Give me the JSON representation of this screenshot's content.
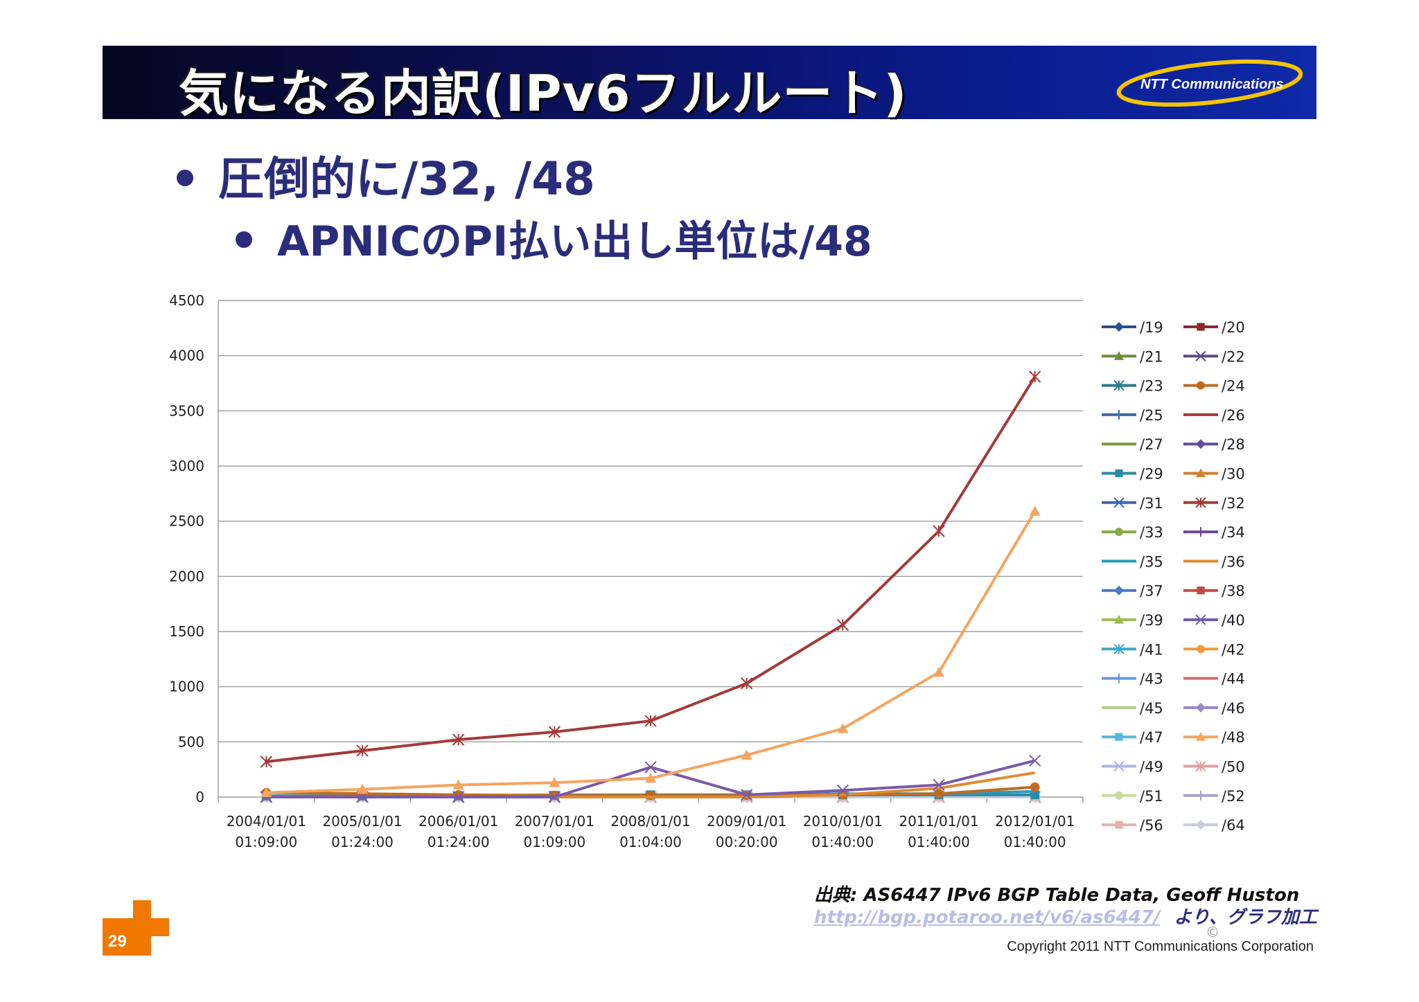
{
  "slide": {
    "title": "気になる内訳(IPv6フルルート)",
    "logo_text": "NTT Communications",
    "bullet1": "圧倒的に/32, /48",
    "bullet2": "APNICのPI払い出し単位は/48",
    "source_line1": "出典:  AS6447 IPv6 BGP Table Data, Geoff Huston",
    "source_link": "http://bgp.potaroo.net/v6/as6447/",
    "source_suffix": "より、グラフ加工",
    "copyright_symbol": "©",
    "copyright": "Copyright 2011 NTT Communications Corporation",
    "page_number": "29"
  },
  "chart_data": {
    "type": "line",
    "title": "",
    "xlabel": "",
    "ylabel": "",
    "ylim": [
      0,
      4500
    ],
    "yticks": [
      0,
      500,
      1000,
      1500,
      2000,
      2500,
      3000,
      3500,
      4000,
      4500
    ],
    "grid": true,
    "legend_position": "right",
    "categories": [
      [
        "2004/01/01",
        "01:09:00"
      ],
      [
        "2005/01/01",
        "01:24:00"
      ],
      [
        "2006/01/01",
        "01:24:00"
      ],
      [
        "2007/01/01",
        "01:09:00"
      ],
      [
        "2008/01/01",
        "01:04:00"
      ],
      [
        "2009/01/01",
        "00:20:00"
      ],
      [
        "2010/01/01",
        "01:40:00"
      ],
      [
        "2011/01/01",
        "01:40:00"
      ],
      [
        "2012/01/01",
        "01:40:00"
      ]
    ],
    "series": [
      {
        "name": "/19",
        "color": "#2e4e8c",
        "marker": "diamond",
        "values": [
          0,
          0,
          0,
          0,
          0,
          0,
          0,
          0,
          0
        ]
      },
      {
        "name": "/20",
        "color": "#8c2a28",
        "marker": "square",
        "values": [
          0,
          0,
          0,
          0,
          0,
          0,
          0,
          0,
          0
        ]
      },
      {
        "name": "/21",
        "color": "#6e8c3a",
        "marker": "triangle",
        "values": [
          0,
          0,
          0,
          0,
          0,
          0,
          0,
          0,
          0
        ]
      },
      {
        "name": "/22",
        "color": "#5e4a80",
        "marker": "x",
        "values": [
          0,
          0,
          0,
          0,
          0,
          0,
          0,
          0,
          0
        ]
      },
      {
        "name": "/23",
        "color": "#2a7a8c",
        "marker": "star",
        "values": [
          0,
          0,
          0,
          0,
          0,
          0,
          0,
          0,
          0
        ]
      },
      {
        "name": "/24",
        "color": "#c06a20",
        "marker": "circle",
        "values": [
          40,
          30,
          20,
          15,
          15,
          15,
          20,
          30,
          90
        ]
      },
      {
        "name": "/25",
        "color": "#3e6aa8",
        "marker": "plus",
        "values": [
          0,
          0,
          0,
          0,
          0,
          0,
          0,
          0,
          0
        ]
      },
      {
        "name": "/26",
        "color": "#a33a34",
        "marker": "none",
        "values": [
          0,
          0,
          0,
          0,
          0,
          0,
          0,
          0,
          0
        ]
      },
      {
        "name": "/27",
        "color": "#7a9a3a",
        "marker": "none",
        "values": [
          0,
          0,
          0,
          0,
          0,
          0,
          0,
          0,
          0
        ]
      },
      {
        "name": "/28",
        "color": "#6a4a96",
        "marker": "diamond",
        "values": [
          0,
          0,
          0,
          0,
          0,
          0,
          0,
          0,
          0
        ]
      },
      {
        "name": "/29",
        "color": "#2a8aa8",
        "marker": "square",
        "values": [
          10,
          10,
          10,
          15,
          20,
          20,
          20,
          20,
          20
        ]
      },
      {
        "name": "/30",
        "color": "#d08030",
        "marker": "triangle",
        "values": [
          0,
          0,
          0,
          0,
          0,
          0,
          0,
          0,
          0
        ]
      },
      {
        "name": "/31",
        "color": "#3a6aa8",
        "marker": "x",
        "values": [
          0,
          0,
          0,
          0,
          0,
          0,
          0,
          0,
          0
        ]
      },
      {
        "name": "/32",
        "color": "#a33a3a",
        "marker": "star",
        "values": [
          320,
          420,
          520,
          590,
          690,
          1030,
          1560,
          2410,
          3810
        ]
      },
      {
        "name": "/33",
        "color": "#8aa84a",
        "marker": "circle",
        "values": [
          0,
          0,
          0,
          0,
          0,
          0,
          0,
          0,
          0
        ]
      },
      {
        "name": "/34",
        "color": "#6a4a96",
        "marker": "plus",
        "values": [
          0,
          0,
          0,
          0,
          0,
          0,
          0,
          0,
          0
        ]
      },
      {
        "name": "/35",
        "color": "#2a9ab8",
        "marker": "none",
        "values": [
          10,
          10,
          10,
          20,
          20,
          20,
          30,
          30,
          50
        ]
      },
      {
        "name": "/36",
        "color": "#e08a30",
        "marker": "none",
        "values": [
          0,
          0,
          0,
          0,
          0,
          0,
          20,
          80,
          220
        ]
      },
      {
        "name": "/37",
        "color": "#4a7ac0",
        "marker": "diamond",
        "values": [
          0,
          0,
          0,
          0,
          0,
          0,
          0,
          0,
          0
        ]
      },
      {
        "name": "/38",
        "color": "#c04a48",
        "marker": "square",
        "values": [
          0,
          0,
          0,
          0,
          0,
          0,
          0,
          0,
          0
        ]
      },
      {
        "name": "/39",
        "color": "#9ac050",
        "marker": "triangle",
        "values": [
          0,
          0,
          0,
          0,
          0,
          0,
          0,
          0,
          0
        ]
      },
      {
        "name": "/40",
        "color": "#7a5aa8",
        "marker": "x",
        "values": [
          0,
          0,
          0,
          0,
          270,
          20,
          60,
          110,
          330
        ]
      },
      {
        "name": "/41",
        "color": "#3aaac8",
        "marker": "star",
        "values": [
          0,
          0,
          0,
          0,
          0,
          0,
          0,
          0,
          0
        ]
      },
      {
        "name": "/42",
        "color": "#f09a40",
        "marker": "circle",
        "values": [
          0,
          0,
          0,
          0,
          0,
          0,
          0,
          0,
          0
        ]
      },
      {
        "name": "/43",
        "color": "#6a9ad8",
        "marker": "plus",
        "values": [
          0,
          0,
          0,
          0,
          0,
          0,
          0,
          0,
          0
        ]
      },
      {
        "name": "/44",
        "color": "#d06a68",
        "marker": "none",
        "values": [
          0,
          0,
          0,
          0,
          0,
          0,
          0,
          0,
          0
        ]
      },
      {
        "name": "/45",
        "color": "#aed080",
        "marker": "none",
        "values": [
          0,
          0,
          0,
          0,
          0,
          0,
          0,
          0,
          0
        ]
      },
      {
        "name": "/46",
        "color": "#9a88c8",
        "marker": "diamond",
        "values": [
          0,
          0,
          0,
          0,
          0,
          0,
          0,
          0,
          0
        ]
      },
      {
        "name": "/47",
        "color": "#5ab8d8",
        "marker": "square",
        "values": [
          0,
          0,
          0,
          0,
          0,
          0,
          0,
          0,
          0
        ]
      },
      {
        "name": "/48",
        "color": "#f4a460",
        "marker": "triangle",
        "values": [
          40,
          70,
          110,
          130,
          170,
          380,
          620,
          1130,
          2590
        ]
      },
      {
        "name": "/49",
        "color": "#a8b8e0",
        "marker": "x",
        "values": [
          0,
          0,
          0,
          0,
          0,
          0,
          0,
          0,
          0
        ]
      },
      {
        "name": "/50",
        "color": "#e0a0a0",
        "marker": "star",
        "values": [
          0,
          0,
          0,
          0,
          0,
          0,
          0,
          0,
          0
        ]
      },
      {
        "name": "/51",
        "color": "#c8dca0",
        "marker": "circle",
        "values": [
          0,
          0,
          0,
          0,
          0,
          0,
          0,
          0,
          0
        ]
      },
      {
        "name": "/52",
        "color": "#a8a0c8",
        "marker": "plus",
        "values": [
          0,
          0,
          0,
          0,
          0,
          0,
          0,
          0,
          0
        ]
      },
      {
        "name": "/56",
        "color": "#e8b0b0",
        "marker": "square",
        "values": [
          0,
          0,
          0,
          0,
          0,
          0,
          0,
          0,
          0
        ]
      },
      {
        "name": "/64",
        "color": "#c8ccdc",
        "marker": "diamond",
        "values": [
          0,
          0,
          0,
          0,
          0,
          0,
          0,
          0,
          0
        ]
      }
    ]
  }
}
